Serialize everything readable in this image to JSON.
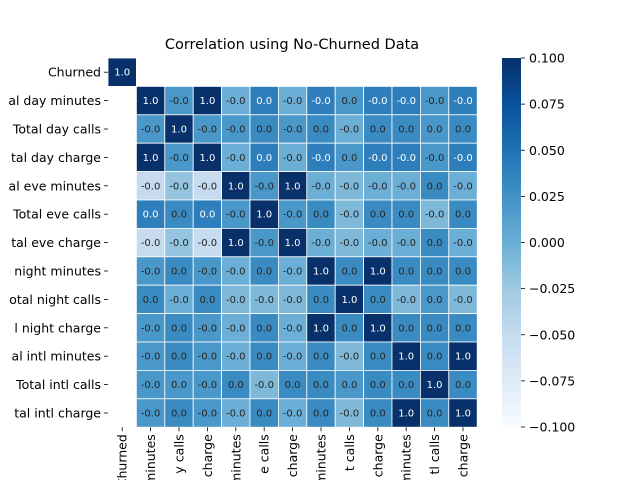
{
  "chart_data": {
    "type": "heatmap",
    "title": "Correlation using No-Churned Data",
    "labels": [
      "Churned",
      "Total day minutes",
      "Total day calls",
      "Total day charge",
      "Total eve minutes",
      "Total eve calls",
      "Total eve charge",
      "Total night minutes",
      "Total night calls",
      "Total night charge",
      "Total intl minutes",
      "Total intl calls",
      "Total intl charge"
    ],
    "x_tick_labels": [
      "Churned",
      "minutes",
      "y calls",
      "charge",
      "minutes",
      "e calls",
      "charge",
      "minutes",
      "t calls",
      "charge",
      "minutes",
      "tl calls",
      "charge"
    ],
    "y_tick_labels": [
      "Churned",
      "al day minutes",
      "Total day calls",
      "tal day charge",
      "al eve minutes",
      "Total eve calls",
      "tal eve charge",
      "night minutes",
      "otal night calls",
      "l night charge",
      "al intl minutes",
      "Total intl calls",
      "tal intl charge"
    ],
    "values": [
      [
        1.0,
        null,
        null,
        null,
        null,
        null,
        null,
        null,
        null,
        null,
        null,
        null,
        null
      ],
      [
        null,
        1.0,
        -0.0,
        1.0,
        -0.0,
        0.0,
        -0.0,
        -0.0,
        0.0,
        -0.0,
        -0.0,
        -0.0,
        -0.0
      ],
      [
        null,
        -0.0,
        1.0,
        -0.0,
        -0.0,
        0.0,
        -0.0,
        0.0,
        -0.0,
        0.0,
        0.0,
        0.0,
        0.0
      ],
      [
        null,
        1.0,
        -0.0,
        1.0,
        -0.0,
        0.0,
        -0.0,
        -0.0,
        0.0,
        -0.0,
        -0.0,
        -0.0,
        -0.0
      ],
      [
        null,
        -0.0,
        -0.0,
        -0.0,
        1.0,
        -0.0,
        1.0,
        -0.0,
        -0.0,
        -0.0,
        -0.0,
        0.0,
        -0.0
      ],
      [
        null,
        0.0,
        0.0,
        0.0,
        -0.0,
        1.0,
        -0.0,
        0.0,
        -0.0,
        0.0,
        0.0,
        -0.0,
        0.0
      ],
      [
        null,
        -0.0,
        -0.0,
        -0.0,
        1.0,
        -0.0,
        1.0,
        -0.0,
        -0.0,
        -0.0,
        -0.0,
        0.0,
        -0.0
      ],
      [
        null,
        -0.0,
        0.0,
        -0.0,
        -0.0,
        0.0,
        -0.0,
        1.0,
        0.0,
        1.0,
        0.0,
        0.0,
        0.0
      ],
      [
        null,
        0.0,
        -0.0,
        0.0,
        -0.0,
        -0.0,
        -0.0,
        0.0,
        1.0,
        0.0,
        -0.0,
        0.0,
        -0.0
      ],
      [
        null,
        -0.0,
        0.0,
        -0.0,
        -0.0,
        0.0,
        -0.0,
        1.0,
        0.0,
        1.0,
        0.0,
        0.0,
        0.0
      ],
      [
        null,
        -0.0,
        0.0,
        -0.0,
        -0.0,
        0.0,
        -0.0,
        0.0,
        -0.0,
        0.0,
        1.0,
        0.0,
        1.0
      ],
      [
        null,
        -0.0,
        0.0,
        -0.0,
        0.0,
        -0.0,
        0.0,
        0.0,
        0.0,
        0.0,
        0.0,
        1.0,
        0.0
      ],
      [
        null,
        -0.0,
        0.0,
        -0.0,
        -0.0,
        0.0,
        -0.0,
        0.0,
        -0.0,
        0.0,
        1.0,
        0.0,
        1.0
      ]
    ],
    "shade": [
      [
        1.0,
        null,
        null,
        null,
        null,
        null,
        null,
        null,
        null,
        null,
        null,
        null,
        null
      ],
      [
        null,
        1.0,
        0.02,
        1.0,
        0.0,
        0.04,
        0.0,
        0.04,
        0.02,
        0.04,
        0.04,
        0.02,
        0.04
      ],
      [
        null,
        0.02,
        1.0,
        0.02,
        0.02,
        0.03,
        0.02,
        0.03,
        0.0,
        0.03,
        0.03,
        0.02,
        0.03
      ],
      [
        null,
        1.0,
        0.02,
        1.0,
        0.0,
        0.04,
        0.0,
        0.04,
        0.02,
        0.04,
        0.04,
        0.02,
        0.04
      ],
      [
        null,
        -0.05,
        -0.02,
        -0.05,
        1.0,
        0.02,
        1.0,
        0.0,
        -0.01,
        0.0,
        0.0,
        0.03,
        0.0
      ],
      [
        null,
        0.04,
        0.03,
        0.04,
        0.02,
        1.0,
        0.02,
        0.03,
        -0.01,
        0.03,
        0.03,
        -0.01,
        0.03
      ],
      [
        null,
        -0.05,
        -0.02,
        -0.05,
        1.0,
        0.02,
        1.0,
        0.0,
        -0.01,
        0.0,
        0.0,
        0.03,
        0.0
      ],
      [
        null,
        0.02,
        0.03,
        0.02,
        0.0,
        0.03,
        0.0,
        1.0,
        0.03,
        1.0,
        0.03,
        0.03,
        0.03
      ],
      [
        null,
        0.03,
        0.0,
        0.03,
        -0.01,
        -0.01,
        -0.01,
        0.03,
        1.0,
        0.03,
        -0.01,
        0.02,
        -0.01
      ],
      [
        null,
        0.02,
        0.03,
        0.02,
        0.0,
        0.03,
        0.0,
        1.0,
        0.03,
        1.0,
        0.03,
        0.03,
        0.03
      ],
      [
        null,
        0.02,
        0.03,
        0.02,
        0.0,
        0.03,
        0.0,
        0.03,
        -0.01,
        0.03,
        1.0,
        0.03,
        1.0
      ],
      [
        null,
        0.02,
        0.02,
        0.02,
        0.03,
        -0.01,
        0.03,
        0.03,
        0.02,
        0.03,
        0.03,
        1.0,
        0.03
      ],
      [
        null,
        0.02,
        0.03,
        0.02,
        0.0,
        0.03,
        0.0,
        0.03,
        -0.01,
        0.03,
        1.0,
        0.03,
        1.0
      ]
    ],
    "colorbar": {
      "vmin": -0.1,
      "vmax": 0.1,
      "ticks": [
        0.1,
        0.075,
        0.05,
        0.025,
        0.0,
        -0.025,
        -0.05,
        -0.075,
        -0.1
      ],
      "tick_labels": [
        "0.100",
        "0.075",
        "0.050",
        "0.025",
        "0.000",
        "−0.025",
        "−0.050",
        "−0.075",
        "−0.100"
      ],
      "colormap": "Blues"
    },
    "grid": true,
    "legend": "colorbar-right"
  }
}
